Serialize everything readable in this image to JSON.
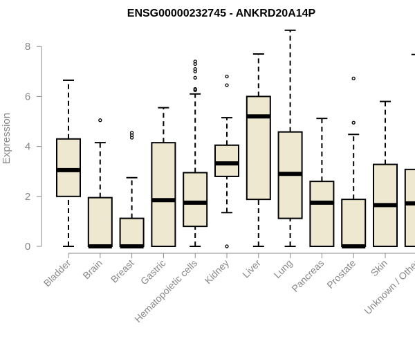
{
  "chart_data": {
    "type": "boxplot",
    "title": "ENSG00000232745 - ANKRD20A14P",
    "xlabel": "",
    "ylabel": "Expression",
    "ylim": [
      0,
      8.8
    ],
    "yticks": [
      "0",
      "2",
      "4",
      "6",
      "8"
    ],
    "grid": false,
    "box_color": "#efe8d0",
    "categories": [
      "Bladder",
      "Brain",
      "Breast",
      "Gastric",
      "Hematopoietic cells",
      "Kidney",
      "Liver",
      "Lung",
      "Pancreas",
      "Prostate",
      "Skin",
      "Unknown / Other"
    ],
    "series": [
      {
        "name": "Bladder",
        "min": 0,
        "q1": 2.0,
        "median": 3.05,
        "q3": 4.3,
        "max": 6.65,
        "outliers": []
      },
      {
        "name": "Brain",
        "min": 0,
        "q1": 0,
        "median": 0,
        "q3": 1.95,
        "max": 4.15,
        "outliers": [
          5.05
        ]
      },
      {
        "name": "Breast",
        "min": 0,
        "q1": 0,
        "median": 0,
        "q3": 1.12,
        "max": 2.75,
        "outliers": [
          4.35,
          4.45,
          4.55
        ]
      },
      {
        "name": "Gastric",
        "min": 0,
        "q1": 0,
        "median": 1.85,
        "q3": 4.15,
        "max": 5.55,
        "outliers": []
      },
      {
        "name": "Hematopoietic cells",
        "min": 0,
        "q1": 0.8,
        "median": 1.75,
        "q3": 2.95,
        "max": 6.1,
        "outliers": [
          6.25,
          6.3,
          6.75,
          7.0,
          7.1,
          7.3,
          7.4
        ]
      },
      {
        "name": "Kidney",
        "min": 1.35,
        "q1": 2.8,
        "median": 3.32,
        "q3": 4.05,
        "max": 5.15,
        "outliers": [
          0.0,
          6.45,
          6.8
        ]
      },
      {
        "name": "Liver",
        "min": 0,
        "q1": 1.88,
        "median": 5.2,
        "q3": 6.0,
        "max": 7.7,
        "outliers": []
      },
      {
        "name": "Lung",
        "min": 0,
        "q1": 1.12,
        "median": 2.9,
        "q3": 4.58,
        "max": 8.65,
        "outliers": []
      },
      {
        "name": "Pancreas",
        "min": 0,
        "q1": 0,
        "median": 1.75,
        "q3": 2.6,
        "max": 5.12,
        "outliers": []
      },
      {
        "name": "Prostate",
        "min": 0,
        "q1": 0,
        "median": 0,
        "q3": 1.88,
        "max": 4.48,
        "outliers": [
          4.95,
          6.72
        ]
      },
      {
        "name": "Skin",
        "min": 0,
        "q1": 0,
        "median": 1.65,
        "q3": 3.28,
        "max": 5.8,
        "outliers": []
      },
      {
        "name": "Unknown / Other",
        "min": 0,
        "q1": 0,
        "median": 1.72,
        "q3": 3.08,
        "max": 7.68,
        "outliers": []
      }
    ]
  }
}
